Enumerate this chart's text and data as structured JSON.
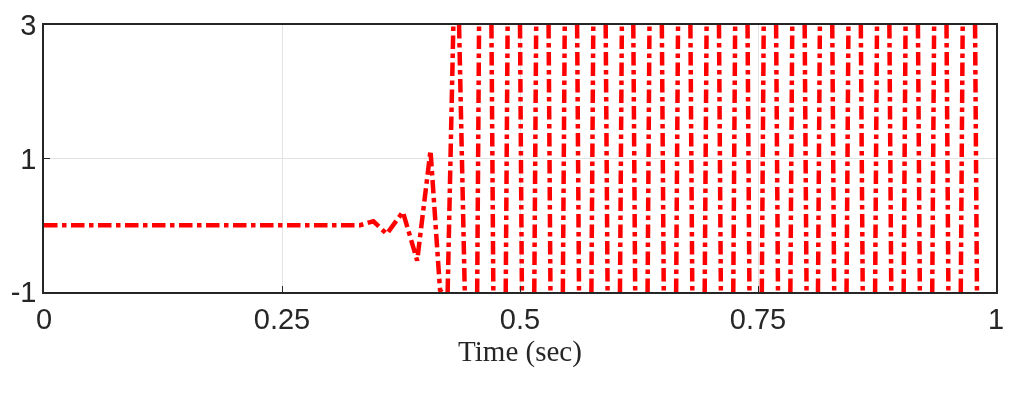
{
  "chart_data": {
    "type": "line",
    "xlabel": "Time (sec)",
    "x": [
      0,
      0.332,
      0.346,
      0.36,
      0.377,
      0.392,
      0.406,
      0.416,
      0.418,
      0.42,
      0.424,
      0.43,
      0.433,
      0.436,
      0.442,
      0.449,
      0.455,
      0.457,
      0.464,
      0.47,
      0.472,
      0.479,
      0.485,
      0.487,
      0.494,
      0.5,
      0.502,
      0.509,
      0.515,
      0.517,
      0.524,
      0.53,
      0.532,
      0.539,
      0.545,
      0.547,
      0.554,
      0.56,
      0.562,
      0.569,
      0.575,
      0.577,
      0.584,
      0.59,
      0.592,
      0.599,
      0.605,
      0.607,
      0.614,
      0.619,
      0.621,
      0.628,
      0.634,
      0.636,
      0.643,
      0.649,
      0.651,
      0.658,
      0.664,
      0.666,
      0.673,
      0.679,
      0.681,
      0.688,
      0.694,
      0.696,
      0.703,
      0.709,
      0.711,
      0.718,
      0.724,
      0.726,
      0.733,
      0.739,
      0.741,
      0.748,
      0.754,
      0.756,
      0.763,
      0.769,
      0.771,
      0.778,
      0.784,
      0.786,
      0.793,
      0.799,
      0.801,
      0.808,
      0.813,
      0.815,
      0.822,
      0.828,
      0.83,
      0.837,
      0.843,
      0.845,
      0.852,
      0.858,
      0.86,
      0.867,
      0.873,
      0.875,
      0.882,
      0.888,
      0.89,
      0.897,
      0.903,
      0.905,
      0.912,
      0.918,
      0.92,
      0.927,
      0.933,
      0.935,
      0.942,
      0.948,
      0.95,
      0.957,
      0.963,
      0.965,
      0.972,
      0.978,
      0.98
    ],
    "series": [
      {
        "color": "#ff0000",
        "values": [
          0,
          0,
          0.06,
          -0.13,
          0.2,
          -0.53,
          1.12,
          -0.97,
          -1,
          null,
          -1,
          3,
          null,
          3,
          -1,
          null,
          -1,
          3,
          null,
          3,
          -1,
          null,
          -1,
          3,
          null,
          3,
          -1,
          null,
          -1,
          3,
          null,
          3,
          -1,
          null,
          -1,
          3,
          null,
          3,
          -1,
          null,
          -1,
          3,
          null,
          3,
          -1,
          null,
          -1,
          3,
          null,
          3,
          -1,
          null,
          -1,
          3,
          null,
          3,
          -1,
          null,
          -1,
          3,
          null,
          3,
          -1,
          null,
          -1,
          3,
          null,
          3,
          -1,
          null,
          -1,
          3,
          null,
          3,
          -1,
          null,
          -1,
          3,
          null,
          3,
          -1,
          null,
          -1,
          3,
          null,
          3,
          -1,
          null,
          -1,
          3,
          null,
          3,
          -1,
          null,
          -1,
          3,
          null,
          3,
          -1,
          null,
          -1,
          3,
          null,
          3,
          -1,
          null,
          -1,
          3,
          null,
          3,
          -1,
          null,
          -1,
          3,
          null,
          3,
          -1,
          null,
          -1,
          3,
          null,
          3,
          -1
        ]
      }
    ],
    "xlim": [
      0,
      1
    ],
    "xticks": [
      0,
      0.25,
      0.5,
      0.75,
      1
    ],
    "ylim": [
      -1,
      3
    ],
    "yticks": [
      -1,
      1,
      3
    ],
    "grid": true,
    "marker": "none",
    "line_style": "dashdot"
  }
}
